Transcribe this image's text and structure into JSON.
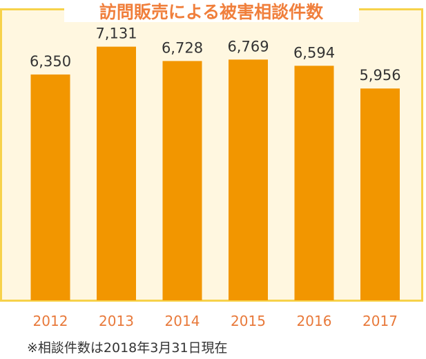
{
  "colors": {
    "panel_background": "#fff7e0",
    "frame": "#f7d24a",
    "bar": "#f29600",
    "title": "#f07f3c",
    "year_label": "#e8793a",
    "value_label": "#333333",
    "note": "#333333"
  },
  "chart_data": {
    "type": "bar",
    "title": "訪問販売による被害相談件数",
    "categories": [
      "2012",
      "2013",
      "2014",
      "2015",
      "2016",
      "2017"
    ],
    "values": [
      6350,
      7131,
      6728,
      6769,
      6594,
      5956
    ],
    "value_labels": [
      "6,350",
      "7,131",
      "6,728",
      "6,769",
      "6,594",
      "5,956"
    ],
    "ylim": [
      0,
      7900
    ],
    "grid": false,
    "legend": "none",
    "note": "※相談件数は2018年3月31日現在"
  }
}
